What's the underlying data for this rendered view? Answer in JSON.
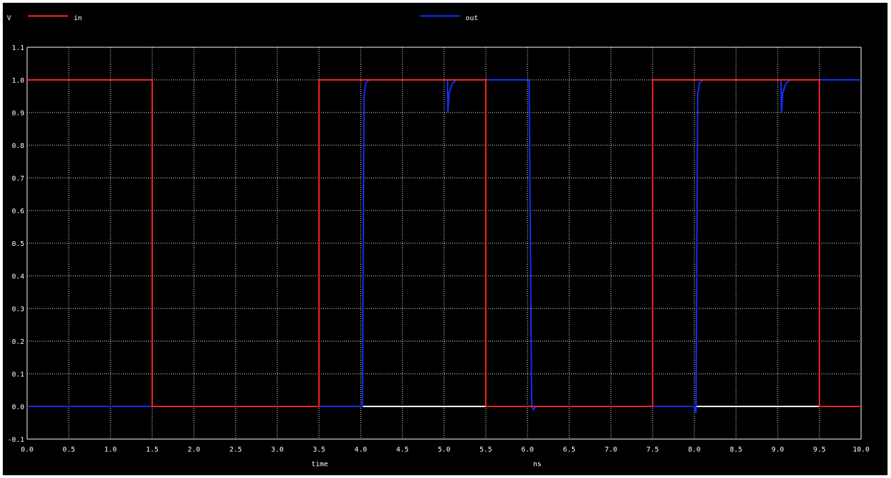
{
  "chart_data": {
    "type": "line",
    "y_unit_label": "V",
    "xlabel": "time",
    "x_unit_label": "ns",
    "xlim": [
      0.0,
      10.0
    ],
    "ylim": [
      -0.1,
      1.1
    ],
    "x_ticks": [
      "0.0",
      "0.5",
      "1.0",
      "1.5",
      "2.0",
      "2.5",
      "3.0",
      "3.5",
      "4.0",
      "4.5",
      "5.0",
      "5.5",
      "6.0",
      "6.5",
      "7.0",
      "7.5",
      "8.0",
      "8.5",
      "9.0",
      "9.5",
      "10.0"
    ],
    "y_ticks": [
      "-0.1",
      "0.0",
      "0.1",
      "0.2",
      "0.3",
      "0.4",
      "0.5",
      "0.6",
      "0.7",
      "0.8",
      "0.9",
      "1.0",
      "1.1"
    ],
    "grid": true,
    "legend_position": "top",
    "background_color": "#000000",
    "grid_color": "#ffffff",
    "series": [
      {
        "name": "in",
        "color": "#ff2020",
        "x": [
          0.0,
          1.5,
          1.5,
          3.5,
          3.5,
          5.5,
          5.5,
          7.5,
          7.5,
          9.5,
          9.5,
          10.0
        ],
        "y": [
          1.0,
          1.0,
          0.0,
          0.0,
          1.0,
          1.0,
          0.0,
          0.0,
          1.0,
          1.0,
          0.0,
          0.0
        ]
      },
      {
        "name": "out",
        "color": "#1030ff",
        "x": [
          0.0,
          4.02,
          4.04,
          4.06,
          4.1,
          5.0,
          5.04,
          5.045,
          5.06,
          5.1,
          5.15,
          5.2,
          6.0,
          6.02,
          6.05,
          6.07,
          6.1,
          8.0,
          8.02,
          8.04,
          8.06,
          8.1,
          9.0,
          9.04,
          9.045,
          9.06,
          9.1,
          9.15,
          9.2,
          10.0
        ],
        "y": [
          0.0,
          0.0,
          0.95,
          0.99,
          1.0,
          1.0,
          1.0,
          0.9,
          0.96,
          0.99,
          1.0,
          1.0,
          1.0,
          1.0,
          0.0,
          -0.01,
          0.0,
          0.0,
          -0.02,
          0.95,
          0.99,
          1.0,
          1.0,
          1.0,
          0.9,
          0.96,
          0.99,
          1.0,
          1.0,
          1.0
        ]
      },
      {
        "name": "",
        "color": "#ffffff",
        "segments": [
          [
            4.02,
            5.5,
            0.0
          ],
          [
            8.02,
            9.5,
            0.0
          ]
        ]
      }
    ]
  }
}
